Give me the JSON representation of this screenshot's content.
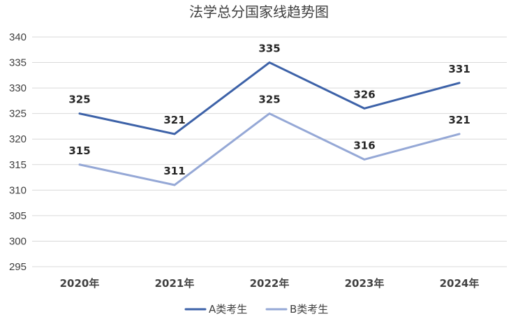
{
  "chart_data": {
    "type": "line",
    "title": "法学总分国家线趋势图",
    "xlabel": "",
    "ylabel": "",
    "categories": [
      "2020年",
      "2021年",
      "2022年",
      "2023年",
      "2024年"
    ],
    "series": [
      {
        "name": "A类考生",
        "values": [
          325,
          321,
          335,
          326,
          331
        ],
        "color": "#3d62a8"
      },
      {
        "name": "B类考生",
        "values": [
          315,
          311,
          325,
          316,
          321
        ],
        "color": "#95a8d6"
      }
    ],
    "ylim": [
      295,
      340
    ],
    "yticks": [
      295,
      300,
      305,
      310,
      315,
      320,
      325,
      330,
      335,
      340
    ],
    "grid": true,
    "legend": "bottom",
    "data_labels": true
  }
}
